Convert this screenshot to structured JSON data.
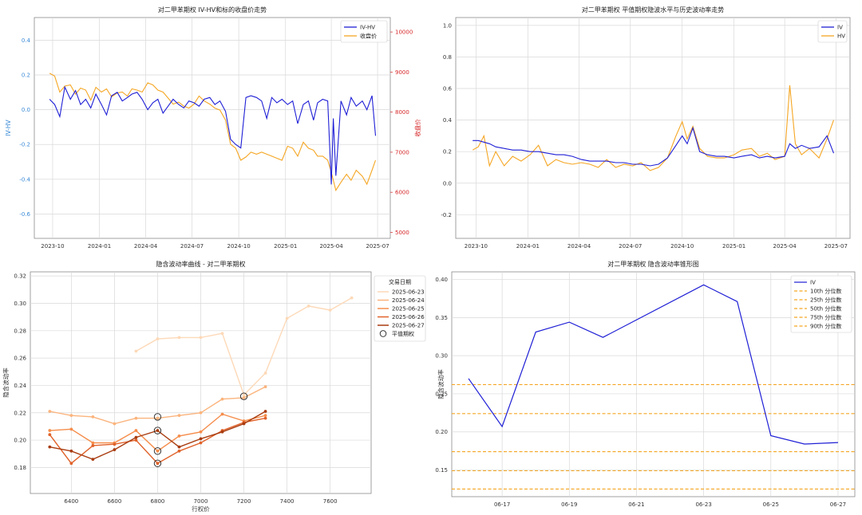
{
  "chart_data": [
    {
      "id": "tl",
      "type": "line",
      "title": "对二甲苯期权 IV-HV和标的收盘价走势",
      "ylabel": "IV-HV",
      "y2label": "收盘价",
      "x_ticks": [
        "2023-10",
        "2024-01",
        "2024-04",
        "2024-07",
        "2024-10",
        "2025-01",
        "2025-04",
        "2025-07"
      ],
      "x_tick_positions": [
        "2023-10-01",
        "2024-01-01",
        "2024-04-01",
        "2024-07-01",
        "2024-10-01",
        "2025-01-01",
        "2025-04-01",
        "2025-07-01"
      ],
      "xlim": [
        "2023-08-26",
        "2025-07-26"
      ],
      "ylim": [
        -0.74,
        0.53
      ],
      "y_ticks": [
        -0.6,
        -0.4,
        -0.2,
        0.0,
        0.2,
        0.4
      ],
      "y_tick_labels": [
        "-0.6",
        "-0.4",
        "-0.2",
        "0.0",
        "0.2",
        "0.4"
      ],
      "y2lim": [
        4850,
        10360
      ],
      "y2_ticks": [
        5000,
        6000,
        7000,
        8000,
        9000,
        10000
      ],
      "y2_tick_labels": [
        "5000",
        "6000",
        "7000",
        "8000",
        "9000",
        "10000"
      ],
      "grid": true,
      "legend_position": "top-right",
      "series": [
        {
          "name": "IV-HV",
          "color": "#1f1fd6",
          "axis": "left",
          "x": [
            "2023-09-25",
            "2023-10-05",
            "2023-10-15",
            "2023-10-25",
            "2023-11-05",
            "2023-11-15",
            "2023-11-25",
            "2023-12-05",
            "2023-12-15",
            "2023-12-25",
            "2024-01-05",
            "2024-01-15",
            "2024-01-25",
            "2024-02-05",
            "2024-02-15",
            "2024-02-25",
            "2024-03-05",
            "2024-03-15",
            "2024-03-25",
            "2024-04-05",
            "2024-04-15",
            "2024-04-25",
            "2024-05-05",
            "2024-05-15",
            "2024-05-25",
            "2024-06-05",
            "2024-06-15",
            "2024-06-25",
            "2024-07-05",
            "2024-07-15",
            "2024-07-25",
            "2024-08-05",
            "2024-08-15",
            "2024-08-25",
            "2024-09-05",
            "2024-09-15",
            "2024-09-25",
            "2024-10-05",
            "2024-10-15",
            "2024-10-25",
            "2024-11-05",
            "2024-11-15",
            "2024-11-25",
            "2024-12-05",
            "2024-12-15",
            "2024-12-25",
            "2025-01-05",
            "2025-01-15",
            "2025-01-25",
            "2025-02-05",
            "2025-02-15",
            "2025-02-25",
            "2025-03-05",
            "2025-03-15",
            "2025-03-25",
            "2025-04-01",
            "2025-04-05",
            "2025-04-10",
            "2025-04-20",
            "2025-05-01",
            "2025-05-10",
            "2025-05-20",
            "2025-06-01",
            "2025-06-10",
            "2025-06-20",
            "2025-06-27"
          ],
          "y": [
            0.06,
            0.03,
            -0.04,
            0.13,
            0.06,
            0.11,
            0.03,
            0.06,
            0.01,
            0.09,
            0.03,
            -0.03,
            0.08,
            0.1,
            0.05,
            0.07,
            0.09,
            0.1,
            0.06,
            0.0,
            0.04,
            0.06,
            -0.02,
            0.02,
            0.06,
            0.03,
            0.01,
            0.05,
            0.04,
            0.02,
            0.06,
            0.07,
            0.03,
            0.05,
            -0.01,
            -0.17,
            -0.2,
            -0.22,
            0.07,
            0.08,
            0.07,
            0.05,
            -0.05,
            0.07,
            0.04,
            0.06,
            0.03,
            0.05,
            -0.08,
            0.03,
            0.05,
            -0.06,
            0.04,
            0.06,
            0.05,
            -0.43,
            -0.05,
            -0.38,
            0.05,
            -0.03,
            0.07,
            0.02,
            0.05,
            0.0,
            0.08,
            -0.15
          ]
        },
        {
          "name": "收盘价",
          "color": "#f5a623",
          "axis": "right",
          "x": [
            "2023-09-25",
            "2023-10-05",
            "2023-10-15",
            "2023-10-25",
            "2023-11-05",
            "2023-11-15",
            "2023-11-25",
            "2023-12-05",
            "2023-12-15",
            "2023-12-25",
            "2024-01-05",
            "2024-01-15",
            "2024-01-25",
            "2024-02-05",
            "2024-02-15",
            "2024-02-25",
            "2024-03-05",
            "2024-03-15",
            "2024-03-25",
            "2024-04-05",
            "2024-04-15",
            "2024-04-25",
            "2024-05-05",
            "2024-05-15",
            "2024-05-25",
            "2024-06-05",
            "2024-06-15",
            "2024-06-25",
            "2024-07-05",
            "2024-07-15",
            "2024-07-25",
            "2024-08-05",
            "2024-08-15",
            "2024-08-25",
            "2024-09-05",
            "2024-09-15",
            "2024-09-25",
            "2024-10-05",
            "2024-10-15",
            "2024-10-25",
            "2024-11-05",
            "2024-11-15",
            "2024-11-25",
            "2024-12-05",
            "2024-12-15",
            "2024-12-25",
            "2025-01-05",
            "2025-01-15",
            "2025-01-25",
            "2025-02-05",
            "2025-02-15",
            "2025-02-25",
            "2025-03-05",
            "2025-03-15",
            "2025-03-25",
            "2025-04-01",
            "2025-04-05",
            "2025-04-10",
            "2025-04-20",
            "2025-05-01",
            "2025-05-10",
            "2025-05-20",
            "2025-06-01",
            "2025-06-10",
            "2025-06-20",
            "2025-06-27"
          ],
          "y": [
            8970,
            8900,
            8500,
            8650,
            8680,
            8450,
            8600,
            8550,
            8300,
            8620,
            8500,
            8580,
            8380,
            8480,
            8500,
            8400,
            8580,
            8550,
            8500,
            8730,
            8680,
            8550,
            8500,
            8350,
            8200,
            8250,
            8150,
            8100,
            8200,
            8400,
            8280,
            8200,
            8100,
            8050,
            7800,
            7200,
            7100,
            6800,
            6880,
            7000,
            6950,
            7000,
            6950,
            6900,
            6850,
            6800,
            7150,
            7100,
            6900,
            7250,
            7100,
            7050,
            6900,
            6900,
            6800,
            6500,
            6300,
            6050,
            6250,
            6450,
            6300,
            6550,
            6400,
            6200,
            6550,
            6800
          ]
        }
      ]
    },
    {
      "id": "tr",
      "type": "line",
      "title": "对二甲苯期权 平值期权隐波水平与历史波动率走势",
      "x_ticks": [
        "2023-10",
        "2024-01",
        "2024-04",
        "2024-07",
        "2024-10",
        "2025-01",
        "2025-04",
        "2025-07"
      ],
      "x_tick_positions": [
        "2023-10-01",
        "2024-01-01",
        "2024-04-01",
        "2024-07-01",
        "2024-10-01",
        "2025-01-01",
        "2025-04-01",
        "2025-07-01"
      ],
      "xlim": [
        "2023-08-26",
        "2025-07-26"
      ],
      "ylim": [
        -0.35,
        1.05
      ],
      "y_ticks": [
        -0.2,
        0.0,
        0.2,
        0.4,
        0.6,
        0.8,
        1.0
      ],
      "y_tick_labels": [
        "-0.2",
        "0.0",
        "0.2",
        "0.4",
        "0.6",
        "0.8",
        "1.0"
      ],
      "grid": true,
      "legend_position": "top-right",
      "series": [
        {
          "name": "IV",
          "color": "#1f1fd6",
          "x": [
            "2023-09-25",
            "2023-10-05",
            "2023-10-15",
            "2023-10-25",
            "2023-11-05",
            "2023-11-20",
            "2023-12-05",
            "2023-12-20",
            "2024-01-05",
            "2024-01-20",
            "2024-02-05",
            "2024-02-20",
            "2024-03-05",
            "2024-03-20",
            "2024-04-05",
            "2024-04-20",
            "2024-05-05",
            "2024-05-20",
            "2024-06-05",
            "2024-06-20",
            "2024-07-05",
            "2024-07-20",
            "2024-08-05",
            "2024-08-20",
            "2024-09-05",
            "2024-09-20",
            "2024-10-01",
            "2024-10-10",
            "2024-10-20",
            "2024-11-01",
            "2024-11-15",
            "2024-12-01",
            "2024-12-15",
            "2025-01-01",
            "2025-01-15",
            "2025-02-01",
            "2025-02-15",
            "2025-03-01",
            "2025-03-15",
            "2025-04-01",
            "2025-04-10",
            "2025-04-20",
            "2025-05-01",
            "2025-05-15",
            "2025-06-01",
            "2025-06-15",
            "2025-06-27"
          ],
          "y": [
            0.27,
            0.27,
            0.26,
            0.25,
            0.23,
            0.22,
            0.21,
            0.21,
            0.2,
            0.2,
            0.19,
            0.18,
            0.18,
            0.17,
            0.15,
            0.14,
            0.14,
            0.14,
            0.13,
            0.13,
            0.12,
            0.12,
            0.11,
            0.12,
            0.16,
            0.24,
            0.3,
            0.25,
            0.35,
            0.2,
            0.18,
            0.17,
            0.17,
            0.16,
            0.17,
            0.18,
            0.16,
            0.17,
            0.16,
            0.17,
            0.25,
            0.22,
            0.24,
            0.22,
            0.23,
            0.3,
            0.19
          ]
        },
        {
          "name": "HV",
          "color": "#f5a623",
          "x": [
            "2023-09-25",
            "2023-10-05",
            "2023-10-15",
            "2023-10-25",
            "2023-11-05",
            "2023-11-20",
            "2023-12-05",
            "2023-12-20",
            "2024-01-05",
            "2024-01-20",
            "2024-02-05",
            "2024-02-20",
            "2024-03-05",
            "2024-03-20",
            "2024-04-05",
            "2024-04-20",
            "2024-05-05",
            "2024-05-20",
            "2024-06-05",
            "2024-06-20",
            "2024-07-05",
            "2024-07-20",
            "2024-08-05",
            "2024-08-20",
            "2024-09-05",
            "2024-09-20",
            "2024-10-01",
            "2024-10-10",
            "2024-10-20",
            "2024-11-01",
            "2024-11-15",
            "2024-12-01",
            "2024-12-15",
            "2025-01-01",
            "2025-01-15",
            "2025-02-01",
            "2025-02-15",
            "2025-03-01",
            "2025-03-15",
            "2025-04-01",
            "2025-04-10",
            "2025-04-20",
            "2025-05-01",
            "2025-05-15",
            "2025-06-01",
            "2025-06-15",
            "2025-06-27"
          ],
          "y": [
            0.21,
            0.23,
            0.3,
            0.11,
            0.2,
            0.11,
            0.17,
            0.14,
            0.18,
            0.24,
            0.11,
            0.15,
            0.13,
            0.12,
            0.13,
            0.12,
            0.1,
            0.15,
            0.1,
            0.12,
            0.11,
            0.13,
            0.08,
            0.1,
            0.16,
            0.3,
            0.39,
            0.28,
            0.36,
            0.22,
            0.17,
            0.16,
            0.16,
            0.18,
            0.21,
            0.22,
            0.17,
            0.19,
            0.15,
            0.17,
            0.62,
            0.25,
            0.18,
            0.22,
            0.16,
            0.28,
            0.4
          ]
        }
      ]
    },
    {
      "id": "bl",
      "type": "line",
      "title": "隐含波动率曲线 - 对二甲苯期权",
      "xlabel": "行权价",
      "ylabel": "隐含波动率",
      "xlim": [
        6210,
        7790
      ],
      "x_ticks": [
        6400,
        6600,
        6800,
        7000,
        7200,
        7400,
        7600
      ],
      "x_tick_labels": [
        "6400",
        "6600",
        "6800",
        "7000",
        "7200",
        "7400",
        "7600"
      ],
      "ylim": [
        0.161,
        0.323
      ],
      "y_ticks": [
        0.18,
        0.2,
        0.22,
        0.24,
        0.26,
        0.28,
        0.3,
        0.32
      ],
      "y_tick_labels": [
        "0.18",
        "0.20",
        "0.22",
        "0.24",
        "0.26",
        "0.28",
        "0.30",
        "0.32"
      ],
      "grid": true,
      "legend_title": "交易日期",
      "legend_position": "top-right",
      "atm_label": "平值期权",
      "series": [
        {
          "name": "2025-06-23",
          "color": "#fdd9b8",
          "x": [
            6700,
            6800,
            6900,
            7000,
            7100,
            7200,
            7300,
            7400,
            7500,
            7600,
            7700
          ],
          "y": [
            0.265,
            0.274,
            0.275,
            0.275,
            0.278,
            0.233,
            0.249,
            0.289,
            0.298,
            0.295,
            0.304
          ]
        },
        {
          "name": "2025-06-24",
          "color": "#fbb47d",
          "x": [
            6300,
            6400,
            6500,
            6600,
            6700,
            6800,
            6900,
            7000,
            7100,
            7200,
            7300
          ],
          "y": [
            0.221,
            0.218,
            0.217,
            0.212,
            0.216,
            0.216,
            0.218,
            0.22,
            0.23,
            0.231,
            0.239
          ]
        },
        {
          "name": "2025-06-25",
          "color": "#f58d4b",
          "x": [
            6300,
            6400,
            6500,
            6600,
            6700,
            6800,
            6900,
            7000,
            7100,
            7200,
            7300
          ],
          "y": [
            0.207,
            0.208,
            0.198,
            0.198,
            0.207,
            0.192,
            0.203,
            0.206,
            0.219,
            0.214,
            0.218
          ]
        },
        {
          "name": "2025-06-26",
          "color": "#e0622a",
          "x": [
            6300,
            6400,
            6500,
            6600,
            6700,
            6800,
            6900,
            7000,
            7100,
            7200,
            7300
          ],
          "y": [
            0.204,
            0.183,
            0.196,
            0.197,
            0.2,
            0.183,
            0.192,
            0.198,
            0.207,
            0.213,
            0.216
          ]
        },
        {
          "name": "2025-06-27",
          "color": "#a83c10",
          "x": [
            6300,
            6400,
            6500,
            6600,
            6700,
            6800,
            6900,
            7000,
            7100,
            7200,
            7300
          ],
          "y": [
            0.195,
            0.192,
            0.186,
            0.193,
            0.202,
            0.207,
            0.195,
            0.201,
            0.206,
            0.212,
            0.221
          ]
        }
      ],
      "atm_points": [
        {
          "x": 7200,
          "y": 0.232
        },
        {
          "x": 6800,
          "y": 0.217
        },
        {
          "x": 6800,
          "y": 0.207
        },
        {
          "x": 6800,
          "y": 0.192
        },
        {
          "x": 6800,
          "y": 0.183
        }
      ]
    },
    {
      "id": "br",
      "type": "line",
      "title": "对二甲苯期权 隐含波动率锥形图",
      "ylabel": "隐含波动率",
      "x": [
        "06-16",
        "06-17",
        "06-18",
        "06-19",
        "06-20",
        "06-21",
        "06-22",
        "06-23",
        "06-24",
        "06-25",
        "06-26",
        "06-27"
      ],
      "x_ticks": [
        "06-17",
        "06-19",
        "06-21",
        "06-23",
        "06-25",
        "06-27"
      ],
      "ylim": [
        0.115,
        0.41
      ],
      "y_ticks": [
        0.15,
        0.2,
        0.25,
        0.3,
        0.35,
        0.4
      ],
      "y_tick_labels": [
        "0.15",
        "0.20",
        "0.25",
        "0.30",
        "0.35",
        "0.40"
      ],
      "grid": true,
      "legend_position": "top-right",
      "series": [
        {
          "name": "IV",
          "color": "#1f1fd6",
          "x": [
            "06-16",
            "06-17",
            "06-18",
            "06-19",
            "06-20",
            "06-23",
            "06-24",
            "06-25",
            "06-26",
            "06-27"
          ],
          "y": [
            0.27,
            0.207,
            0.331,
            0.344,
            0.324,
            0.393,
            0.371,
            0.195,
            0.184,
            0.186
          ]
        }
      ],
      "percentiles": [
        {
          "name": "10th 分位数",
          "value": 0.125,
          "color": "#f5a623"
        },
        {
          "name": "25th 分位数",
          "value": 0.149,
          "color": "#f5a623"
        },
        {
          "name": "50th 分位数",
          "value": 0.174,
          "color": "#f5a623"
        },
        {
          "name": "75th 分位数",
          "value": 0.224,
          "color": "#f5a623"
        },
        {
          "name": "90th 分位数",
          "value": 0.262,
          "color": "#f5a623"
        }
      ]
    }
  ]
}
